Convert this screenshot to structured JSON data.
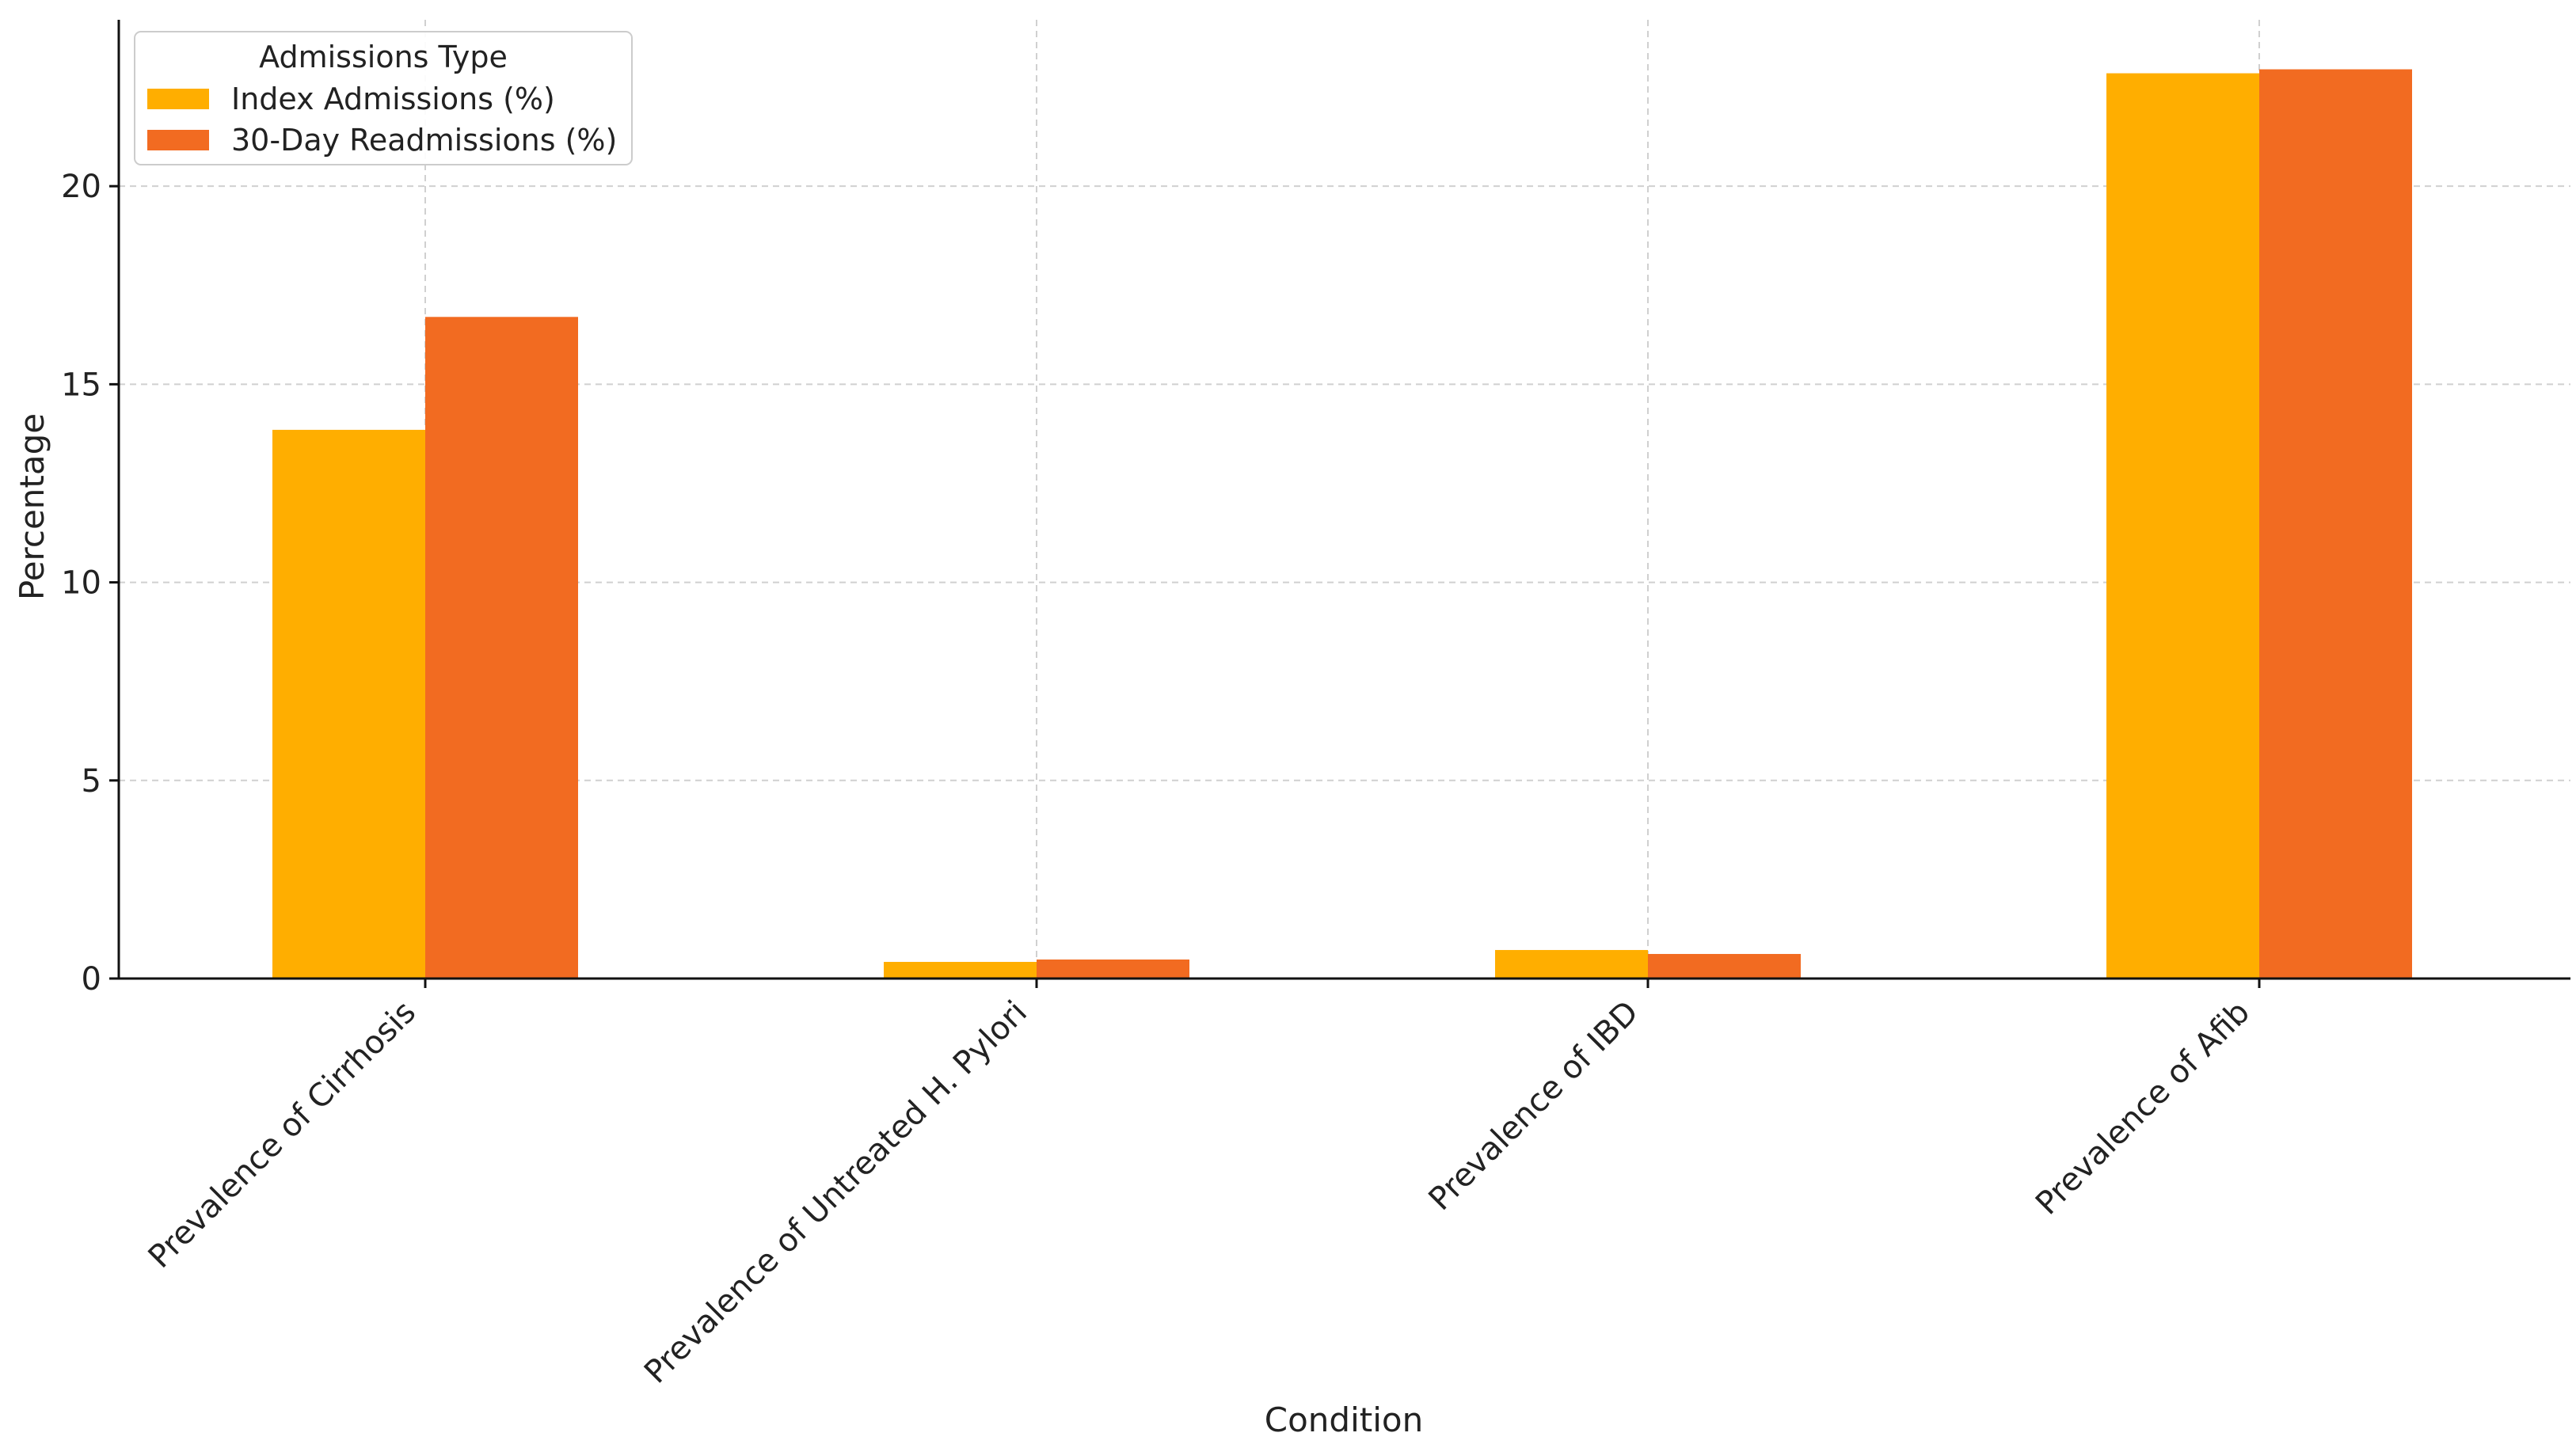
{
  "chart_data": {
    "type": "bar",
    "title": "",
    "xlabel": "Condition",
    "ylabel": "Percentage",
    "categories": [
      "Prevalence of Cirrhosis",
      "Prevalence of Untreated H. Pylori",
      "Prevalence of IBD",
      "Prevalence of Afib"
    ],
    "series": [
      {
        "name": "Index Admissions (%)",
        "color": "#FFAE00",
        "values": [
          13.85,
          0.42,
          0.72,
          22.85
        ]
      },
      {
        "name": "30-Day Readmissions (%)",
        "color": "#F26B21",
        "values": [
          16.7,
          0.48,
          0.62,
          22.95
        ]
      }
    ],
    "ylim": [
      0,
      24.2
    ],
    "yticks": [
      0,
      5,
      10,
      15,
      20
    ],
    "grid": true,
    "legend": {
      "title": "Admissions Type",
      "placement": "top-left"
    }
  }
}
